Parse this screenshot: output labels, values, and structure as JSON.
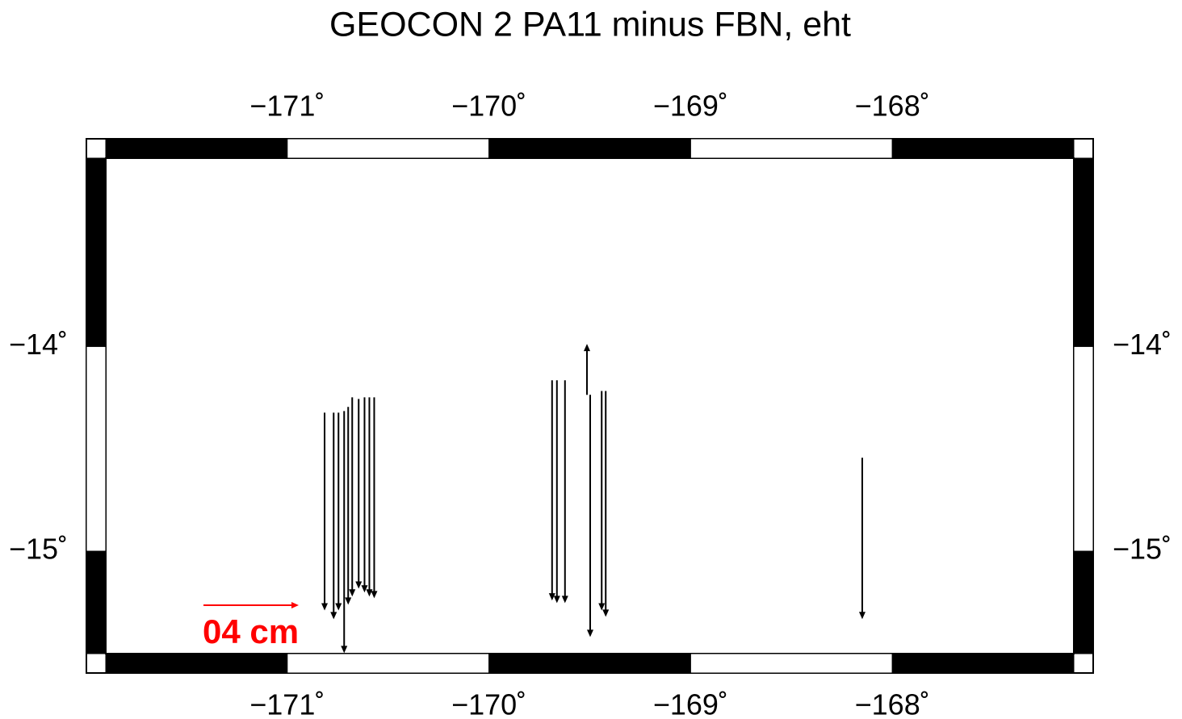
{
  "chart_data": {
    "type": "vector",
    "title": "GEOCON 2 PA11 minus FBN, eht",
    "xlim": [
      -171.9,
      -167.1
    ],
    "ylim": [
      -15.5,
      -13.08
    ],
    "xticks": [
      {
        "value": -171,
        "label": "−171˚"
      },
      {
        "value": -170,
        "label": "−170˚"
      },
      {
        "value": -169,
        "label": "−169˚"
      },
      {
        "value": -168,
        "label": "−168˚"
      }
    ],
    "yticks": [
      {
        "value": -14,
        "label": "−14˚"
      },
      {
        "value": -15,
        "label": "−15˚"
      }
    ],
    "color": "#000000",
    "scale": {
      "value": 4,
      "label": "04 cm",
      "color": "#ff0000"
    },
    "vectors": [
      {
        "lon": -170.815,
        "lat": -14.323,
        "dv": -8.31
      },
      {
        "lon": -170.77,
        "lat": -14.323,
        "dv": -8.68
      },
      {
        "lon": -170.746,
        "lat": -14.323,
        "dv": -8.31
      },
      {
        "lon": -170.718,
        "lat": -14.315,
        "dv": -10.17
      },
      {
        "lon": -170.698,
        "lat": -14.295,
        "dv": -8.31
      },
      {
        "lon": -170.678,
        "lat": -14.248,
        "dv": -8.37
      },
      {
        "lon": -170.646,
        "lat": -14.256,
        "dv": -7.97
      },
      {
        "lon": -170.617,
        "lat": -14.248,
        "dv": -8.2
      },
      {
        "lon": -170.593,
        "lat": -14.248,
        "dv": -8.37
      },
      {
        "lon": -170.569,
        "lat": -14.248,
        "dv": -8.44
      },
      {
        "lon": -169.687,
        "lat": -14.165,
        "dv": -9.25
      },
      {
        "lon": -169.663,
        "lat": -14.165,
        "dv": -9.36
      },
      {
        "lon": -169.623,
        "lat": -14.165,
        "dv": -9.36
      },
      {
        "lon": -169.514,
        "lat": -14.236,
        "dv": 2.14
      },
      {
        "lon": -169.498,
        "lat": -14.236,
        "dv": -10.17
      },
      {
        "lon": -169.441,
        "lat": -14.217,
        "dv": -9.22
      },
      {
        "lon": -169.421,
        "lat": -14.217,
        "dv": -9.49
      },
      {
        "lon": -168.149,
        "lat": -14.543,
        "dv": -6.78
      }
    ]
  }
}
